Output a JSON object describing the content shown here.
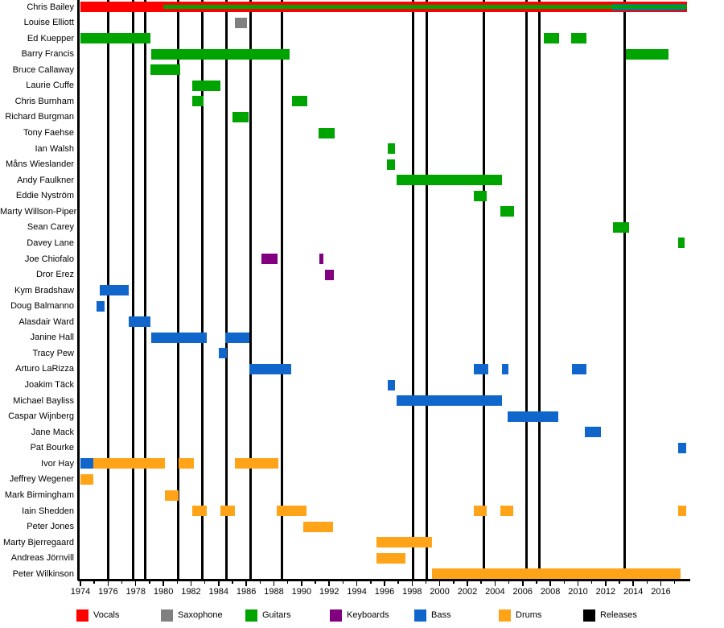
{
  "colors": {
    "vocals": "#ff0000",
    "saxophone": "#808080",
    "guitars": "#00a400",
    "keyboards": "#800080",
    "bass": "#1166cc",
    "drums": "#ffa419",
    "releases": "#000000"
  },
  "legend": [
    {
      "key": "vocals",
      "label": "Vocals"
    },
    {
      "key": "saxophone",
      "label": "Saxophone"
    },
    {
      "key": "guitars",
      "label": "Guitars"
    },
    {
      "key": "keyboards",
      "label": "Keyboards"
    },
    {
      "key": "bass",
      "label": "Bass"
    },
    {
      "key": "drums",
      "label": "Drums"
    },
    {
      "key": "releases",
      "label": "Releases"
    }
  ],
  "chart_data": {
    "type": "timeline",
    "title": "",
    "x_axis": {
      "min": 1974,
      "max": 2018,
      "tick_interval": 2,
      "labels": [
        1974,
        1976,
        1978,
        1980,
        1982,
        1984,
        1986,
        1988,
        1990,
        1992,
        1994,
        1996,
        1998,
        2000,
        2002,
        2004,
        2006,
        2008,
        2010,
        2012,
        2014,
        2016
      ]
    },
    "releases": [
      1976.0,
      1977.8,
      1978.7,
      1981.05,
      1982.8,
      1984.55,
      1986.3,
      1988.6,
      1998.05,
      1999.05,
      2003.2,
      2006.25,
      2007.2,
      2013.4
    ],
    "members": [
      {
        "name": "Chris Bailey",
        "bars": [
          {
            "role": "vocals",
            "from": 1974.0,
            "to": 2017.9
          },
          {
            "role": "guitars",
            "from": 1980.0,
            "to": 2017.9,
            "nested": true
          },
          {
            "role": "bass",
            "from": 2012.5,
            "to": 2017.75,
            "nested": true
          }
        ]
      },
      {
        "name": "Louise Elliott",
        "bars": [
          {
            "role": "saxophone",
            "from": 1985.15,
            "to": 1986.05
          }
        ]
      },
      {
        "name": "Ed Kuepper",
        "bars": [
          {
            "role": "guitars",
            "from": 1974.0,
            "to": 1979.05
          },
          {
            "role": "guitars",
            "from": 2007.5,
            "to": 2008.65
          },
          {
            "role": "guitars",
            "from": 2009.5,
            "to": 2010.6
          }
        ]
      },
      {
        "name": "Barry Francis",
        "bars": [
          {
            "role": "guitars",
            "from": 1979.15,
            "to": 1989.15
          },
          {
            "role": "guitars",
            "from": 2013.45,
            "to": 2016.55
          }
        ]
      },
      {
        "name": "Bruce Callaway",
        "bars": [
          {
            "role": "guitars",
            "from": 1979.05,
            "to": 1981.2
          }
        ]
      },
      {
        "name": "Laurie Cuffe",
        "bars": [
          {
            "role": "guitars",
            "from": 1982.1,
            "to": 1984.1
          }
        ]
      },
      {
        "name": "Chris Burnham",
        "bars": [
          {
            "role": "guitars",
            "from": 1982.1,
            "to": 1982.9
          },
          {
            "role": "guitars",
            "from": 1989.3,
            "to": 1990.4
          }
        ]
      },
      {
        "name": "Richard Burgman",
        "bars": [
          {
            "role": "guitars",
            "from": 1985.0,
            "to": 1986.15
          }
        ]
      },
      {
        "name": "Tony Faehse",
        "bars": [
          {
            "role": "guitars",
            "from": 1991.25,
            "to": 1992.4
          }
        ]
      },
      {
        "name": "Ian Walsh",
        "bars": [
          {
            "role": "guitars",
            "from": 1996.25,
            "to": 1996.75
          }
        ]
      },
      {
        "name": "Måns Wieslander",
        "bars": [
          {
            "role": "guitars",
            "from": 1996.2,
            "to": 1996.75
          }
        ]
      },
      {
        "name": "Andy Faulkner",
        "bars": [
          {
            "role": "guitars",
            "from": 1996.85,
            "to": 2004.5
          }
        ]
      },
      {
        "name": "Eddie Nyström",
        "bars": [
          {
            "role": "guitars",
            "from": 2002.45,
            "to": 2003.4
          }
        ]
      },
      {
        "name": "Marty Willson-Piper",
        "bars": [
          {
            "role": "guitars",
            "from": 2004.4,
            "to": 2005.4
          }
        ]
      },
      {
        "name": "Sean Carey",
        "bars": [
          {
            "role": "guitars",
            "from": 2012.55,
            "to": 2013.7
          }
        ]
      },
      {
        "name": "Davey Lane",
        "bars": [
          {
            "role": "guitars",
            "from": 2017.25,
            "to": 2017.7
          }
        ]
      },
      {
        "name": "Joe Chiofalo",
        "bars": [
          {
            "role": "keyboards",
            "from": 1987.1,
            "to": 1988.25
          },
          {
            "role": "keyboards",
            "from": 1991.3,
            "to": 1991.6
          }
        ]
      },
      {
        "name": "Dror Erez",
        "bars": [
          {
            "role": "keyboards",
            "from": 1991.7,
            "to": 1992.35
          }
        ]
      },
      {
        "name": "Kym Bradshaw",
        "bars": [
          {
            "role": "bass",
            "from": 1975.4,
            "to": 1977.5
          }
        ]
      },
      {
        "name": "Doug Balmanno",
        "bars": [
          {
            "role": "bass",
            "from": 1975.15,
            "to": 1975.75
          }
        ]
      },
      {
        "name": "Alasdair Ward",
        "bars": [
          {
            "role": "bass",
            "from": 1977.5,
            "to": 1979.05
          }
        ]
      },
      {
        "name": "Janine Hall",
        "bars": [
          {
            "role": "bass",
            "from": 1979.1,
            "to": 1983.15
          },
          {
            "role": "bass",
            "from": 1984.5,
            "to": 1986.25
          }
        ]
      },
      {
        "name": "Tracy Pew",
        "bars": [
          {
            "role": "bass",
            "from": 1984.0,
            "to": 1984.6
          }
        ]
      },
      {
        "name": "Arturo LaRizza",
        "bars": [
          {
            "role": "bass",
            "from": 1986.25,
            "to": 1989.25
          },
          {
            "role": "bass",
            "from": 2002.45,
            "to": 2003.5
          },
          {
            "role": "bass",
            "from": 2004.5,
            "to": 2004.95
          },
          {
            "role": "bass",
            "from": 2009.55,
            "to": 2010.6
          }
        ]
      },
      {
        "name": "Joakim Täck",
        "bars": [
          {
            "role": "bass",
            "from": 1996.25,
            "to": 1996.75
          }
        ]
      },
      {
        "name": "Michael Bayliss",
        "bars": [
          {
            "role": "bass",
            "from": 1996.85,
            "to": 2004.5
          }
        ]
      },
      {
        "name": "Caspar Wijnberg",
        "bars": [
          {
            "role": "bass",
            "from": 2004.9,
            "to": 2008.55
          }
        ]
      },
      {
        "name": "Jane Mack",
        "bars": [
          {
            "role": "bass",
            "from": 2010.5,
            "to": 2011.65
          }
        ]
      },
      {
        "name": "Pat Bourke",
        "bars": [
          {
            "role": "bass",
            "from": 2017.25,
            "to": 2017.85
          }
        ]
      },
      {
        "name": "Ivor Hay",
        "bars": [
          {
            "role": "bass",
            "from": 1974.0,
            "to": 1974.95
          },
          {
            "role": "drums",
            "from": 1974.95,
            "to": 1980.1
          },
          {
            "role": "drums",
            "from": 1981.1,
            "to": 1982.2
          },
          {
            "role": "drums",
            "from": 1985.2,
            "to": 1988.3
          }
        ]
      },
      {
        "name": "Jeffrey Wegener",
        "bars": [
          {
            "role": "drums",
            "from": 1974.0,
            "to": 1974.95
          }
        ]
      },
      {
        "name": "Mark Birmingham",
        "bars": [
          {
            "role": "drums",
            "from": 1980.1,
            "to": 1981.1
          }
        ]
      },
      {
        "name": "Iain Shedden",
        "bars": [
          {
            "role": "drums",
            "from": 1982.1,
            "to": 1983.15
          },
          {
            "role": "drums",
            "from": 1984.1,
            "to": 1985.2
          },
          {
            "role": "drums",
            "from": 1988.2,
            "to": 1990.35
          },
          {
            "role": "drums",
            "from": 2002.45,
            "to": 2003.4
          },
          {
            "role": "drums",
            "from": 2004.4,
            "to": 2005.3
          },
          {
            "role": "drums",
            "from": 2017.25,
            "to": 2017.85
          }
        ]
      },
      {
        "name": "Peter Jones",
        "bars": [
          {
            "role": "drums",
            "from": 1990.15,
            "to": 1992.3
          }
        ]
      },
      {
        "name": "Marty Bjerregaard",
        "bars": [
          {
            "role": "drums",
            "from": 1995.4,
            "to": 1999.45
          }
        ]
      },
      {
        "name": "Andreas Jörnvill",
        "bars": [
          {
            "role": "drums",
            "from": 1995.4,
            "to": 1997.5
          }
        ]
      },
      {
        "name": "Peter Wilkinson",
        "bars": [
          {
            "role": "drums",
            "from": 1999.45,
            "to": 2017.4
          }
        ]
      }
    ]
  }
}
